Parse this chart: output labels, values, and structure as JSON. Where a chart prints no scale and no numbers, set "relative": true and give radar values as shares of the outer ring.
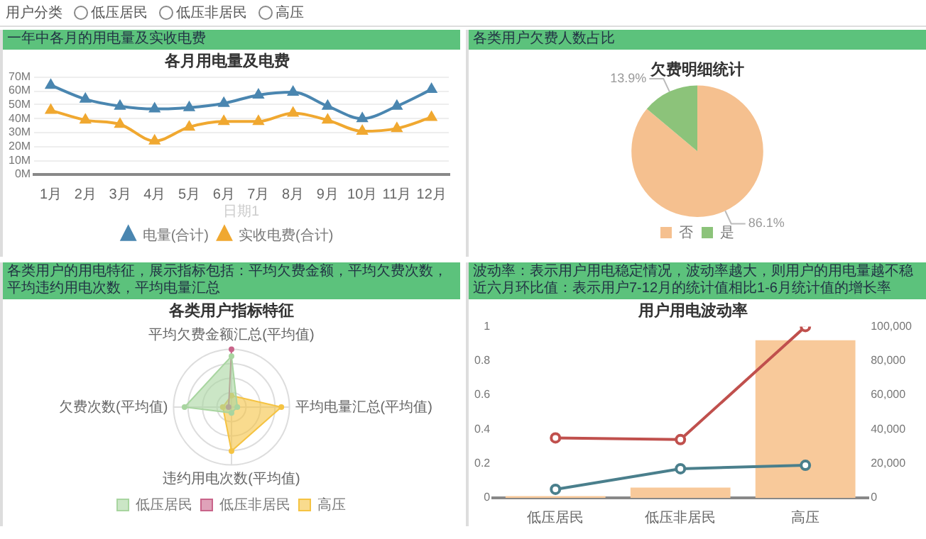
{
  "chart_data": [
    {
      "type": "line",
      "title": "各月用电量及电费",
      "subtitle": "一年中各月的用电量及实收电费",
      "xlabel": "日期1",
      "annotations": [
        "用户分类",
        "低压居民",
        "低压非居民",
        "高压"
      ],
      "categories": [
        "1月",
        "2月",
        "3月",
        "4月",
        "5月",
        "6月",
        "7月",
        "8月",
        "9月",
        "10月",
        "11月",
        "12月"
      ],
      "series": [
        {
          "name": "电量(合计)",
          "color": "#4a86b0",
          "values": [
            64,
            54,
            49,
            47,
            48,
            51,
            57,
            59,
            49,
            40,
            49,
            61
          ]
        },
        {
          "name": "实收电费(合计)",
          "color": "#f0a830",
          "values": [
            46,
            39,
            36,
            24,
            34,
            38,
            38,
            44,
            39,
            31,
            33,
            41
          ]
        }
      ],
      "ylim": [
        0,
        70
      ],
      "yticks": [
        {
          "value": 0,
          "label": "0M"
        },
        {
          "value": 10,
          "label": "10M"
        },
        {
          "value": 20,
          "label": "20M"
        },
        {
          "value": 30,
          "label": "30M"
        },
        {
          "value": 40,
          "label": "40M"
        },
        {
          "value": 50,
          "label": "50M"
        },
        {
          "value": 60,
          "label": "60M"
        },
        {
          "value": 70,
          "label": "70M"
        }
      ],
      "grid": "y",
      "legend": "bottom",
      "marker": "triangle"
    },
    {
      "type": "pie",
      "title": "欠费明细统计",
      "subtitle": "各类用户欠费人数占比",
      "categories": [
        "否",
        "是"
      ],
      "values": [
        86.1,
        13.9
      ],
      "colors": [
        "#f5c08f",
        "#8cc37a"
      ],
      "value_labels": [
        "86.1%",
        "13.9%"
      ],
      "legend": "bottom"
    },
    {
      "type": "radar",
      "title": "各类用户指标特征",
      "subtitle": "各类用户的用电特征，展示指标包括：平均欠费金额，平均欠费次数，平均违约用电次数，平均电量汇总",
      "categories": [
        "平均欠费金额汇总(平均值)",
        "平均电量汇总(平均值)",
        "违约用电次数(平均值)",
        "欠费次数(平均值)"
      ],
      "series": [
        {
          "name": "低压居民",
          "color": "#a8d5a0",
          "values": [
            0.88,
            0.1,
            0.1,
            0.81
          ]
        },
        {
          "name": "低压非居民",
          "color": "#c9648a",
          "values": [
            1,
            null,
            null,
            0.05
          ]
        },
        {
          "name": "高压",
          "color": "#f5c342",
          "values": [
            0.2,
            0.86,
            0.76,
            0.15
          ]
        }
      ],
      "relative": true,
      "grid": true,
      "legend": "bottom"
    },
    {
      "type": "bar",
      "title": "用户用电波动率",
      "subtitle": "波动率：表示用户用电稳定情况，波动率越大，则用户的用电量越不稳",
      "annotations": [
        "近六月环比值：表示用户7-12月的统计值相比1-6月统计值的增长率"
      ],
      "categories": [
        "低压居民",
        "低压非居民",
        "高压"
      ],
      "series": [
        {
          "type": "line",
          "color": "#c0504d",
          "values": [
            0.35,
            0.34,
            1
          ]
        },
        {
          "type": "line",
          "color": "#4a7f8c",
          "values": [
            0.05,
            0.17,
            0.19
          ]
        },
        {
          "color": "#f8c99a",
          "values": [
            1000,
            6000,
            92000
          ],
          "axis": "y2"
        }
      ],
      "ylim": [
        0,
        1
      ],
      "yticks": [
        0,
        0.2,
        0.4,
        0.6,
        0.8,
        1
      ],
      "y2lim": [
        0,
        100000
      ],
      "y2ticks": [
        0,
        {
          "value": 20000,
          "label": "20,000"
        },
        {
          "value": 40000,
          "label": "40,000"
        },
        {
          "value": 60000,
          "label": "60,000"
        },
        {
          "value": 80000,
          "label": "80,000"
        },
        {
          "value": 100000,
          "label": "100,000"
        }
      ],
      "grid": false,
      "marker": "circle"
    }
  ]
}
